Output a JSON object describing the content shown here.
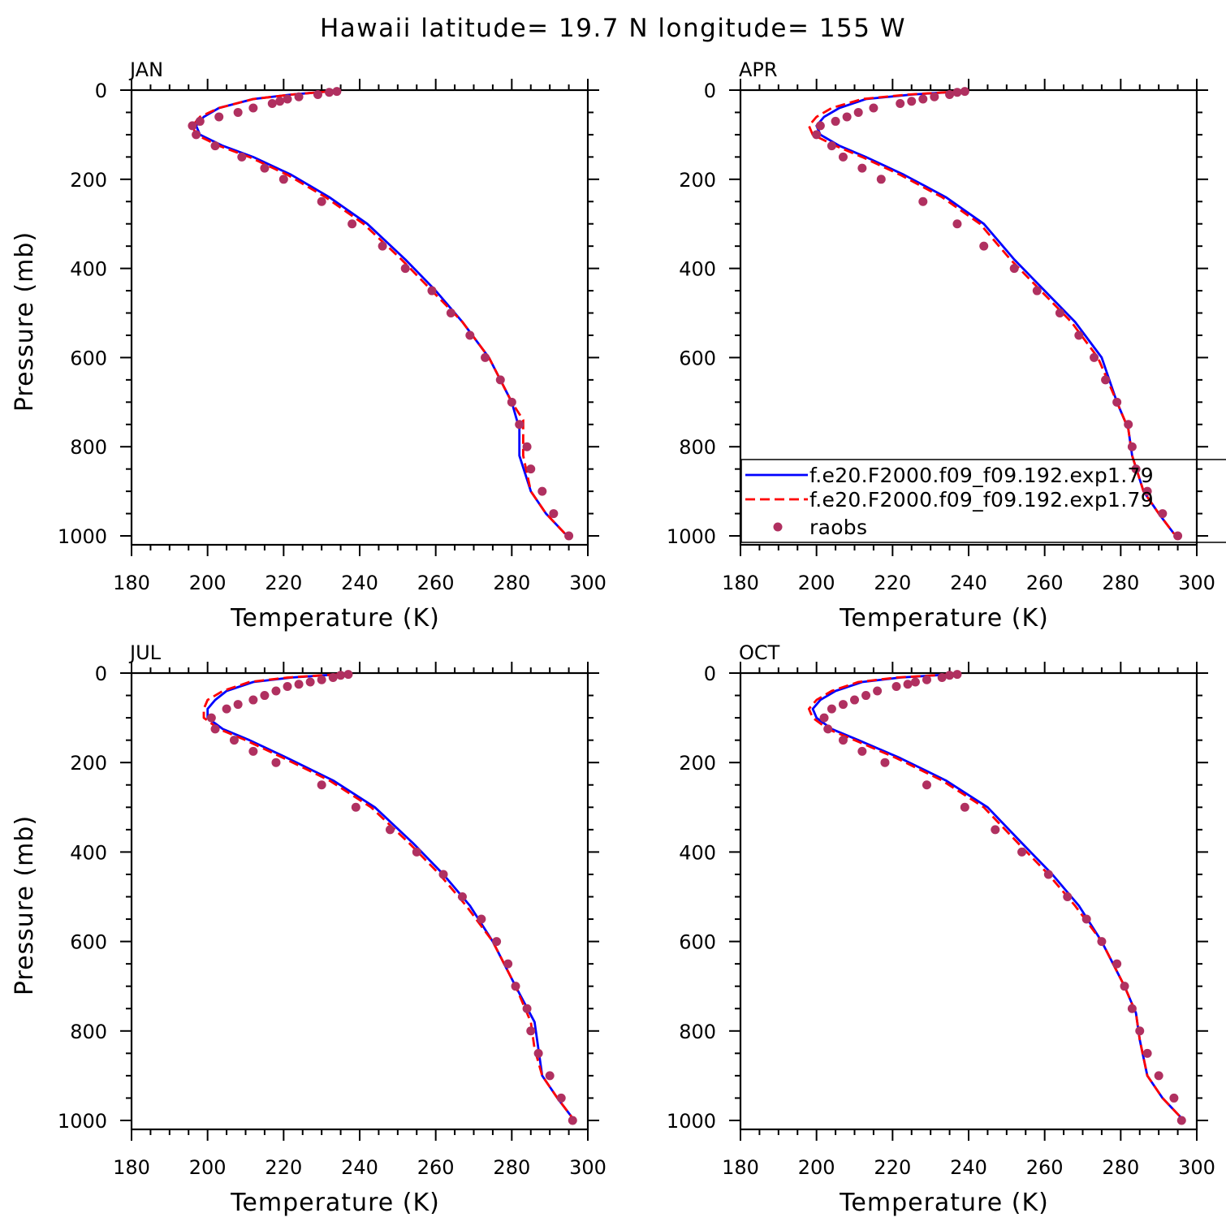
{
  "figure_title": "Hawaii  latitude= 19.7 N longitude= 155 W",
  "legend": {
    "entries": [
      {
        "label": "f.e20.F2000.f09_f09.192.exp1.79",
        "style": "solid",
        "color": "#0000ff"
      },
      {
        "label": "f.e20.F2000.f09_f09.192.exp1.79",
        "style": "dashed",
        "color": "#ff0000"
      },
      {
        "label": "raobs",
        "style": "marker",
        "color": "#b03060"
      }
    ]
  },
  "chart_data": [
    {
      "type": "line",
      "panel": "JAN",
      "xlabel": "Temperature (K)",
      "ylabel": "Pressure (mb)",
      "xlim": [
        180,
        300
      ],
      "ylim": [
        1020,
        0
      ],
      "xticks": [
        180,
        200,
        220,
        240,
        260,
        280,
        300
      ],
      "yticks": [
        0,
        200,
        400,
        600,
        800,
        1000
      ],
      "series": [
        {
          "name": "f.e20.F2000.f09_f09.192.exp1.79",
          "style": "solid",
          "color": "#0000ff",
          "x": [
            232,
            222,
            212,
            203,
            199,
            197,
            198,
            204,
            212,
            222,
            232,
            242,
            252,
            260,
            267,
            274,
            280,
            282,
            282,
            285,
            289,
            294
          ],
          "y": [
            3,
            10,
            20,
            40,
            60,
            80,
            100,
            125,
            150,
            190,
            240,
            300,
            380,
            450,
            520,
            600,
            700,
            760,
            820,
            900,
            950,
            995
          ]
        },
        {
          "name": "f.e20.F2000.f09_f09.192.exp1.79",
          "style": "dashed",
          "color": "#ff0000",
          "x": [
            232,
            222,
            212,
            203,
            198,
            196,
            197,
            203,
            211,
            221,
            231,
            241,
            251,
            259,
            267,
            274,
            280,
            283,
            283,
            285,
            289,
            294
          ],
          "y": [
            3,
            10,
            20,
            40,
            60,
            80,
            100,
            125,
            150,
            190,
            240,
            300,
            380,
            450,
            520,
            600,
            700,
            740,
            820,
            900,
            950,
            995
          ]
        },
        {
          "name": "raobs",
          "style": "marker",
          "color": "#b03060",
          "x": [
            234,
            232,
            229,
            224,
            221,
            219,
            217,
            212,
            208,
            203,
            198,
            196,
            197,
            202,
            209,
            215,
            220,
            230,
            238,
            246,
            252,
            259,
            264,
            269,
            273,
            277,
            280,
            282,
            284,
            285,
            288,
            291,
            295
          ],
          "y": [
            3,
            5,
            10,
            15,
            20,
            25,
            30,
            40,
            50,
            60,
            70,
            80,
            100,
            125,
            150,
            175,
            200,
            250,
            300,
            350,
            400,
            450,
            500,
            550,
            600,
            650,
            700,
            750,
            800,
            850,
            900,
            950,
            1000
          ]
        }
      ]
    },
    {
      "type": "line",
      "panel": "APR",
      "xlabel": "Temperature (K)",
      "ylabel": "",
      "xlim": [
        180,
        300
      ],
      "ylim": [
        1020,
        0
      ],
      "xticks": [
        180,
        200,
        220,
        240,
        260,
        280,
        300
      ],
      "yticks": [
        0,
        200,
        400,
        600,
        800,
        1000
      ],
      "series": [
        {
          "name": "f.e20.F2000.f09_f09.192.exp1.79",
          "style": "solid",
          "color": "#0000ff",
          "x": [
            238,
            225,
            213,
            206,
            202,
            200,
            201,
            206,
            213,
            223,
            234,
            244,
            252,
            260,
            268,
            275,
            279,
            282,
            283,
            286,
            290,
            294
          ],
          "y": [
            3,
            10,
            20,
            40,
            60,
            80,
            100,
            125,
            150,
            190,
            240,
            300,
            380,
            450,
            520,
            600,
            700,
            760,
            820,
            900,
            950,
            995
          ]
        },
        {
          "name": "f.e20.F2000.f09_f09.192.exp1.79",
          "style": "dashed",
          "color": "#ff0000",
          "x": [
            238,
            224,
            212,
            204,
            200,
            198,
            199,
            205,
            212,
            222,
            233,
            243,
            251,
            259,
            267,
            274,
            279,
            282,
            283,
            286,
            290,
            294
          ],
          "y": [
            3,
            10,
            20,
            40,
            60,
            80,
            100,
            125,
            150,
            190,
            240,
            300,
            380,
            450,
            520,
            600,
            700,
            760,
            820,
            900,
            950,
            995
          ]
        },
        {
          "name": "raobs",
          "style": "marker",
          "color": "#b03060",
          "x": [
            239,
            237,
            235,
            231,
            228,
            225,
            222,
            215,
            211,
            208,
            205,
            201,
            200,
            204,
            207,
            212,
            217,
            228,
            237,
            244,
            252,
            258,
            264,
            269,
            273,
            276,
            279,
            282,
            283,
            284,
            287,
            291,
            295
          ],
          "y": [
            3,
            5,
            10,
            15,
            20,
            25,
            30,
            40,
            50,
            60,
            70,
            80,
            100,
            125,
            150,
            175,
            200,
            250,
            300,
            350,
            400,
            450,
            500,
            550,
            600,
            650,
            700,
            750,
            800,
            850,
            900,
            950,
            1000
          ]
        }
      ]
    },
    {
      "type": "line",
      "panel": "JUL",
      "xlabel": "Temperature (K)",
      "ylabel": "Pressure (mb)",
      "xlim": [
        180,
        300
      ],
      "ylim": [
        1020,
        0
      ],
      "xticks": [
        180,
        200,
        220,
        240,
        260,
        280,
        300
      ],
      "yticks": [
        0,
        200,
        400,
        600,
        800,
        1000
      ],
      "series": [
        {
          "name": "f.e20.F2000.f09_f09.192.exp1.79",
          "style": "solid",
          "color": "#0000ff",
          "x": [
            234,
            222,
            212,
            205,
            202,
            200,
            200,
            204,
            211,
            221,
            233,
            244,
            254,
            262,
            269,
            275,
            281,
            286,
            287,
            288,
            292,
            296
          ],
          "y": [
            3,
            10,
            20,
            40,
            60,
            80,
            100,
            125,
            150,
            190,
            240,
            300,
            380,
            450,
            520,
            600,
            700,
            780,
            840,
            900,
            950,
            995
          ]
        },
        {
          "name": "f.e20.F2000.f09_f09.192.exp1.79",
          "style": "dashed",
          "color": "#ff0000",
          "x": [
            234,
            221,
            211,
            204,
            200,
            199,
            199,
            203,
            210,
            220,
            232,
            243,
            253,
            261,
            268,
            275,
            281,
            285,
            286,
            288,
            292,
            296
          ],
          "y": [
            3,
            10,
            20,
            40,
            60,
            80,
            100,
            125,
            150,
            190,
            240,
            300,
            380,
            450,
            520,
            600,
            700,
            780,
            840,
            900,
            950,
            995
          ]
        },
        {
          "name": "raobs",
          "style": "marker",
          "color": "#b03060",
          "x": [
            237,
            235,
            233,
            230,
            227,
            224,
            221,
            218,
            215,
            212,
            208,
            205,
            201,
            202,
            207,
            212,
            218,
            230,
            239,
            248,
            255,
            262,
            267,
            272,
            276,
            279,
            281,
            284,
            285,
            287,
            290,
            293,
            296
          ],
          "y": [
            3,
            5,
            10,
            15,
            20,
            25,
            30,
            40,
            50,
            60,
            70,
            80,
            100,
            125,
            150,
            175,
            200,
            250,
            300,
            350,
            400,
            450,
            500,
            550,
            600,
            650,
            700,
            750,
            800,
            850,
            900,
            950,
            1000
          ]
        }
      ]
    },
    {
      "type": "line",
      "panel": "OCT",
      "xlabel": "Temperature (K)",
      "ylabel": "",
      "xlim": [
        180,
        300
      ],
      "ylim": [
        1020,
        0
      ],
      "xticks": [
        180,
        200,
        220,
        240,
        260,
        280,
        300
      ],
      "yticks": [
        0,
        200,
        400,
        600,
        800,
        1000
      ],
      "series": [
        {
          "name": "f.e20.F2000.f09_f09.192.exp1.79",
          "style": "solid",
          "color": "#0000ff",
          "x": [
            235,
            222,
            212,
            205,
            201,
            199,
            200,
            204,
            211,
            222,
            234,
            245,
            254,
            262,
            269,
            275,
            281,
            284,
            285,
            287,
            291,
            296
          ],
          "y": [
            3,
            10,
            20,
            40,
            60,
            80,
            100,
            125,
            150,
            190,
            240,
            300,
            380,
            450,
            520,
            600,
            700,
            760,
            820,
            900,
            950,
            995
          ]
        },
        {
          "name": "f.e20.F2000.f09_f09.192.exp1.79",
          "style": "dashed",
          "color": "#ff0000",
          "x": [
            235,
            221,
            211,
            204,
            200,
            198,
            199,
            203,
            210,
            221,
            233,
            244,
            253,
            261,
            268,
            275,
            281,
            284,
            285,
            287,
            291,
            296
          ],
          "y": [
            3,
            10,
            20,
            40,
            60,
            80,
            100,
            125,
            150,
            190,
            240,
            300,
            380,
            450,
            520,
            600,
            700,
            760,
            820,
            900,
            950,
            995
          ]
        },
        {
          "name": "raobs",
          "style": "marker",
          "color": "#b03060",
          "x": [
            237,
            235,
            233,
            229,
            226,
            224,
            221,
            216,
            213,
            210,
            207,
            204,
            202,
            203,
            207,
            212,
            218,
            229,
            239,
            247,
            254,
            261,
            266,
            271,
            275,
            279,
            281,
            283,
            285,
            287,
            290,
            294,
            296
          ],
          "y": [
            3,
            5,
            10,
            15,
            20,
            25,
            30,
            40,
            50,
            60,
            70,
            80,
            100,
            125,
            150,
            175,
            200,
            250,
            300,
            350,
            400,
            450,
            500,
            550,
            600,
            650,
            700,
            750,
            800,
            850,
            900,
            950,
            1000
          ]
        }
      ]
    }
  ]
}
